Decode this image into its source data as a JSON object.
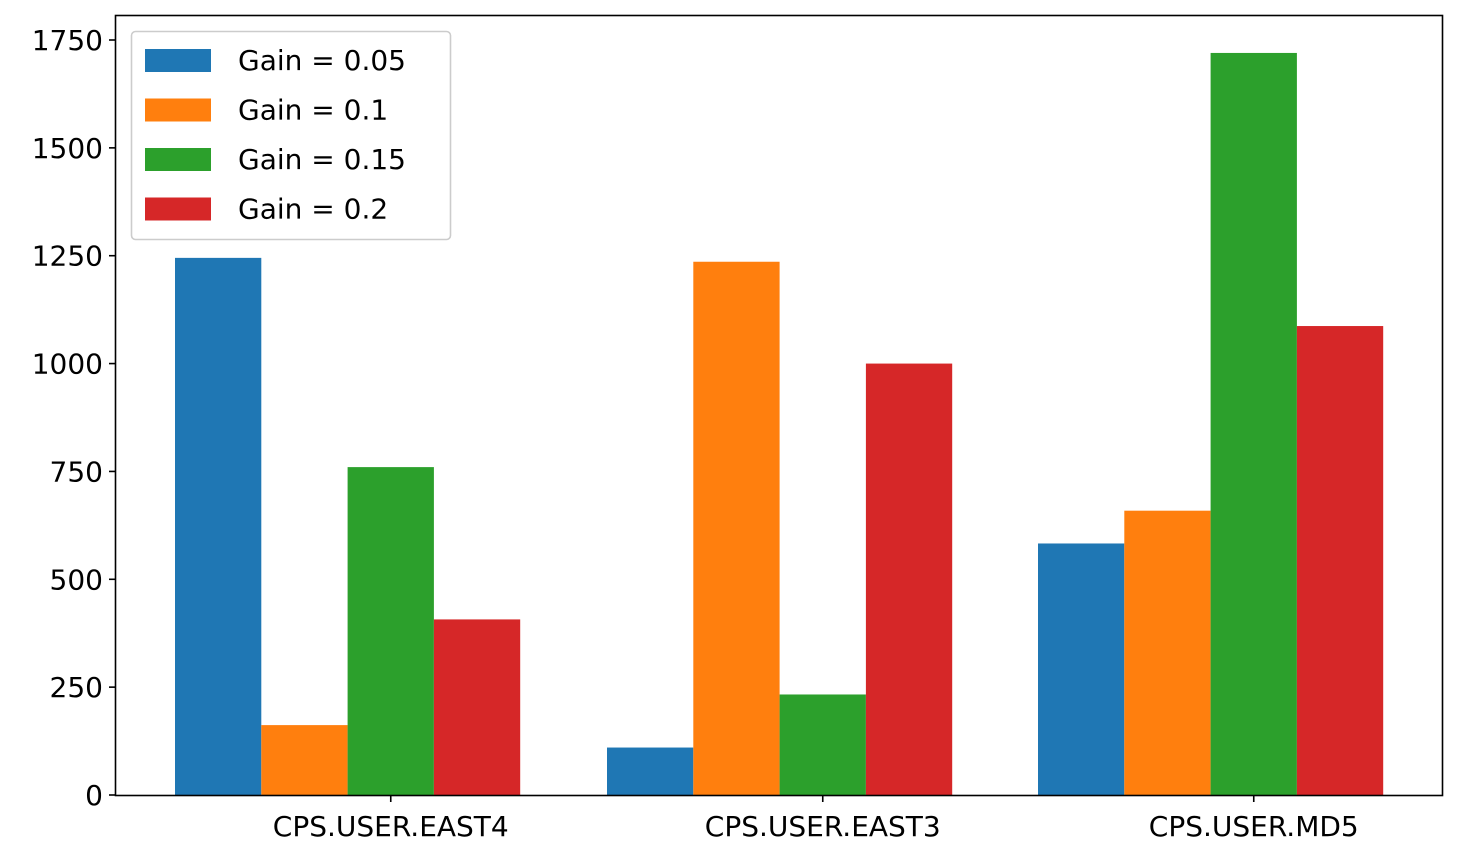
{
  "chart_data": {
    "type": "bar",
    "title": "",
    "xlabel": "",
    "ylabel": "",
    "categories": [
      "CPS.USER.EAST4",
      "CPS.USER.EAST3",
      "CPS.USER.MD5"
    ],
    "series": [
      {
        "name": "Gain = 0.05",
        "color": "#1f77b4",
        "values": [
          1245,
          110,
          583
        ]
      },
      {
        "name": "Gain = 0.1",
        "color": "#ff7f0e",
        "values": [
          162,
          1236,
          659
        ]
      },
      {
        "name": "Gain = 0.15",
        "color": "#2ca02c",
        "values": [
          760,
          233,
          1720
        ]
      },
      {
        "name": "Gain = 0.2",
        "color": "#d62728",
        "values": [
          407,
          1000,
          1087
        ]
      }
    ],
    "ylim": [
      0,
      1800
    ],
    "yticks": [
      0,
      250,
      500,
      750,
      1000,
      1250,
      1500,
      1750
    ],
    "ytick_labels": [
      "0",
      "250",
      "500",
      "750",
      "1000",
      "1250",
      "1500",
      "1750"
    ],
    "legend_position": "top-left",
    "grid": false
  }
}
